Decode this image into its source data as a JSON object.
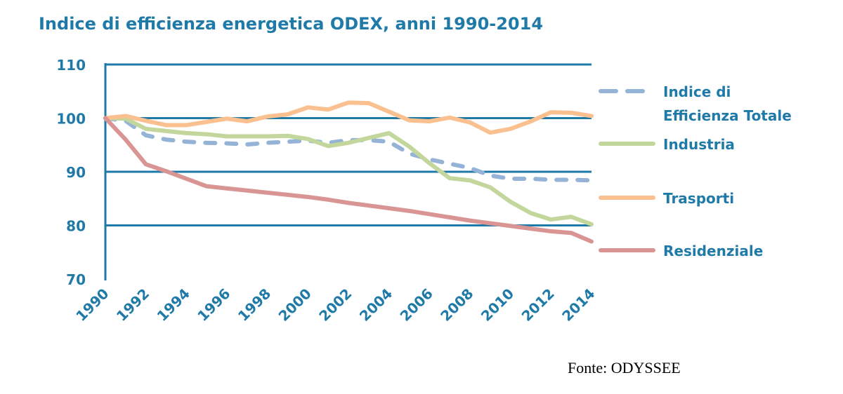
{
  "chart_data": {
    "type": "line",
    "title": "Indice di efficienza energetica ODEX, anni 1990-2014",
    "source": "Fonte: ODYSSEE",
    "xlabel": "",
    "ylabel": "",
    "ylim": [
      70,
      110
    ],
    "yticks": [
      "70",
      "80",
      "90",
      "100",
      "110"
    ],
    "x": [
      1990,
      1991,
      1992,
      1993,
      1994,
      1995,
      1996,
      1997,
      1998,
      1999,
      2000,
      2001,
      2002,
      2003,
      2004,
      2005,
      2006,
      2007,
      2008,
      2009,
      2010,
      2011,
      2012,
      2013,
      2014
    ],
    "xticks": [
      "1990",
      "1992",
      "1994",
      "1996",
      "1998",
      "2000",
      "2002",
      "2004",
      "2006",
      "2008",
      "2010",
      "2012",
      "2014"
    ],
    "grid": "horizontal",
    "legend_position": "right",
    "series": [
      {
        "name": "Indice di Efficienza Totale",
        "legend_lines": [
          "Indice di",
          "Efficienza Totale"
        ],
        "color": "#94b3d7",
        "dashed": true,
        "values": [
          100,
          99.5,
          96.8,
          96,
          95.6,
          95.4,
          95.3,
          95.1,
          95.4,
          95.6,
          95.8,
          95.4,
          95.9,
          95.9,
          95.6,
          93.4,
          92.3,
          91.5,
          90.7,
          89.3,
          88.7,
          88.7,
          88.5,
          88.5,
          88.4
        ]
      },
      {
        "name": "Industria",
        "legend_lines": [
          "Industria"
        ],
        "color": "#c3d69b",
        "dashed": false,
        "values": [
          100,
          99.9,
          98,
          97.6,
          97.2,
          97,
          96.6,
          96.6,
          96.6,
          96.7,
          96.1,
          94.8,
          95.4,
          96.3,
          97.2,
          94.7,
          91.6,
          88.8,
          88.4,
          87.1,
          84.4,
          82.3,
          81.1,
          81.6,
          80.2
        ]
      },
      {
        "name": "Trasporti",
        "legend_lines": [
          "Trasporti"
        ],
        "color": "#fac090",
        "dashed": false,
        "values": [
          100,
          100.4,
          99.5,
          98.7,
          98.7,
          99.3,
          99.9,
          99.4,
          100.3,
          100.7,
          102,
          101.6,
          102.9,
          102.8,
          101.2,
          99.6,
          99.4,
          100.1,
          99.2,
          97.3,
          98,
          99.4,
          101.1,
          101,
          100.4
        ]
      },
      {
        "name": "Residenziale",
        "legend_lines": [
          "Residenziale"
        ],
        "color": "#d99594",
        "dashed": false,
        "values": [
          100,
          96,
          91.4,
          90.1,
          88.7,
          87.3,
          86.9,
          86.5,
          86.1,
          85.7,
          85.3,
          84.8,
          84.2,
          83.7,
          83.2,
          82.7,
          82.1,
          81.5,
          80.9,
          80.4,
          79.9,
          79.4,
          78.9,
          78.6,
          77
        ]
      }
    ],
    "axis_color": "#1f7aa8"
  }
}
